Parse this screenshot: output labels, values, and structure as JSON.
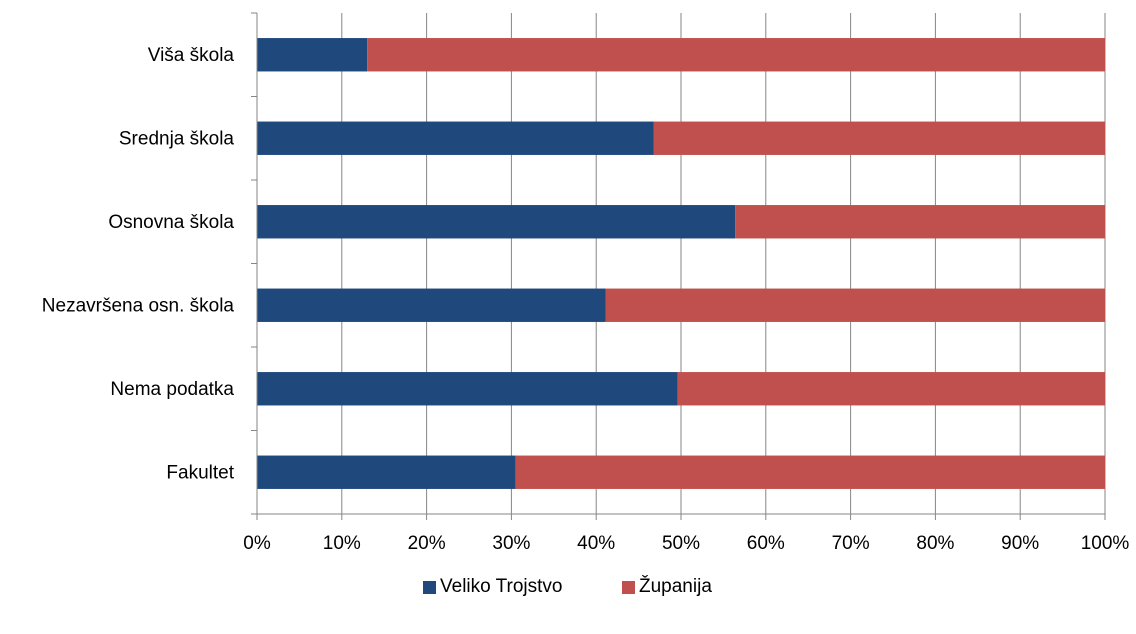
{
  "chart_data": {
    "type": "bar",
    "orientation": "horizontal",
    "stacked": "percent",
    "categories": [
      "Fakultet",
      "Nema podatka",
      "Nezavršena osn. škola",
      "Osnovna škola",
      "Srednja škola",
      "Viša škola"
    ],
    "series": [
      {
        "name": "Veliko Trojstvo",
        "values": [
          30.5,
          49.6,
          41.1,
          56.4,
          46.8,
          13.0
        ],
        "color": "#1F497D"
      },
      {
        "name": "Županija",
        "values": [
          69.5,
          50.4,
          58.9,
          43.6,
          53.2,
          87.0
        ],
        "color": "#C0504D"
      }
    ],
    "x_ticks": [
      "0%",
      "10%",
      "20%",
      "30%",
      "40%",
      "50%",
      "60%",
      "70%",
      "80%",
      "90%",
      "100%"
    ],
    "xlim": [
      0,
      100
    ],
    "grid": "vertical",
    "legend_position": "bottom",
    "title": "",
    "xlabel": "",
    "ylabel": ""
  }
}
